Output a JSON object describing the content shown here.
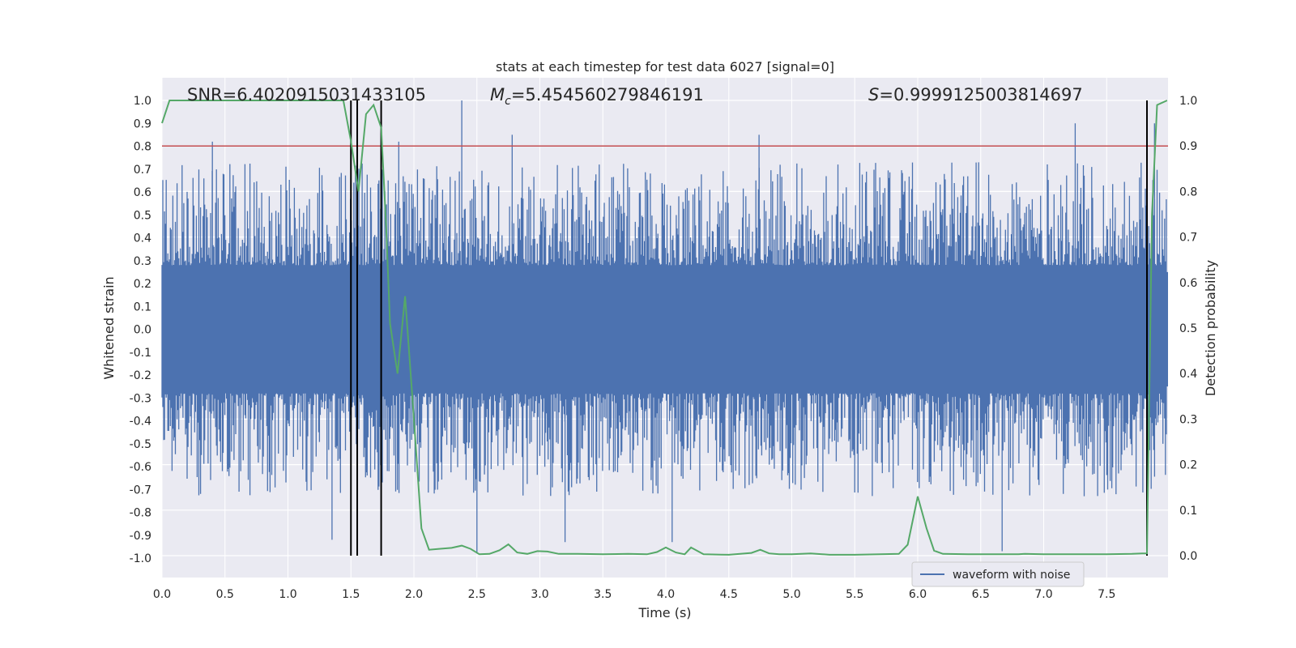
{
  "chart_data": {
    "type": "line",
    "title": "stats at each timestep for test data 6027 [signal=0]",
    "xlabel": "Time (s)",
    "ylabel": "Whitened strain",
    "y2label": "Detection probability",
    "xlim": [
      0.0,
      8.0
    ],
    "ylim": [
      -1.08,
      1.1
    ],
    "y2lim": [
      -0.05,
      1.0
    ],
    "xticks": [
      "0.0",
      "0.5",
      "1.0",
      "1.5",
      "2.0",
      "2.5",
      "3.0",
      "3.5",
      "4.0",
      "4.5",
      "5.0",
      "5.5",
      "6.0",
      "6.5",
      "7.0",
      "7.5"
    ],
    "yticks": [
      "1.0",
      "0.9",
      "0.8",
      "0.7",
      "0.6",
      "0.5",
      "0.4",
      "0.3",
      "0.2",
      "0.1",
      "0.0",
      "-0.1",
      "-0.2",
      "-0.3",
      "-0.4",
      "-0.5",
      "-0.6",
      "-0.7",
      "-0.8",
      "-0.9",
      "-1.0"
    ],
    "y2ticks": [
      "1.0",
      "0.9",
      "0.8",
      "0.7",
      "0.6",
      "0.5",
      "0.4",
      "0.3",
      "0.2",
      "0.1",
      "0.0"
    ],
    "grid": true,
    "legend": {
      "entries": [
        "waveform with noise"
      ],
      "placement": "lower-right"
    },
    "annotations": {
      "snr": "SNR=6.4020915031433105",
      "mc_symbol": "M",
      "mc_sub": "c",
      "mc_value": "=5.454560279846191",
      "s_symbol": "S",
      "s_value": "=0.9999125003814697"
    },
    "threshold": {
      "value": 0.9,
      "axis": "y2",
      "color": "#c44e52"
    },
    "vlines": [
      1.5,
      1.55,
      1.74,
      7.82
    ],
    "series": [
      {
        "name": "waveform with noise",
        "axis": "y",
        "color": "#4c72b0",
        "kind": "noise",
        "description_envelope_upper": [
          [
            0.0,
            0.6
          ],
          [
            1.0,
            0.6
          ],
          [
            2.0,
            0.6
          ],
          [
            3.0,
            0.6
          ],
          [
            4.0,
            0.6
          ],
          [
            5.0,
            0.6
          ],
          [
            6.0,
            0.6
          ],
          [
            7.0,
            0.6
          ],
          [
            8.0,
            0.6
          ]
        ],
        "spikes": [
          [
            0.4,
            0.82
          ],
          [
            1.88,
            0.82
          ],
          [
            2.38,
            1.0
          ],
          [
            2.78,
            0.85
          ],
          [
            4.74,
            0.85
          ],
          [
            7.25,
            0.9
          ],
          [
            7.88,
            0.9
          ],
          [
            2.5,
            -0.98
          ],
          [
            6.67,
            -0.97
          ],
          [
            4.05,
            -0.93
          ],
          [
            3.2,
            -0.93
          ],
          [
            1.35,
            -0.92
          ]
        ]
      },
      {
        "name": "",
        "axis": "y2",
        "color": "#55a868",
        "x": [
          0.0,
          0.06,
          0.13,
          0.3,
          0.6,
          0.9,
          1.2,
          1.4,
          1.44,
          1.5,
          1.56,
          1.62,
          1.68,
          1.74,
          1.78,
          1.81,
          1.87,
          1.93,
          1.99,
          2.06,
          2.12,
          2.2,
          2.3,
          2.38,
          2.45,
          2.52,
          2.6,
          2.68,
          2.75,
          2.82,
          2.9,
          2.98,
          3.06,
          3.15,
          3.3,
          3.5,
          3.7,
          3.85,
          3.93,
          4.0,
          4.08,
          4.15,
          4.2,
          4.3,
          4.5,
          4.68,
          4.75,
          4.82,
          4.9,
          5.0,
          5.15,
          5.3,
          5.5,
          5.7,
          5.85,
          5.92,
          6.0,
          6.07,
          6.13,
          6.2,
          6.4,
          6.6,
          6.8,
          6.85,
          7.0,
          7.3,
          7.5,
          7.7,
          7.78,
          7.82,
          7.86,
          7.9,
          7.98
        ],
        "y": [
          0.95,
          1.0,
          1.0,
          1.0,
          1.0,
          1.0,
          1.0,
          1.0,
          1.0,
          0.91,
          0.8,
          0.97,
          0.99,
          0.94,
          0.72,
          0.51,
          0.4,
          0.57,
          0.34,
          0.06,
          0.013,
          0.015,
          0.017,
          0.022,
          0.015,
          0.003,
          0.004,
          0.012,
          0.025,
          0.007,
          0.004,
          0.01,
          0.009,
          0.004,
          0.004,
          0.003,
          0.004,
          0.003,
          0.008,
          0.018,
          0.007,
          0.003,
          0.018,
          0.003,
          0.002,
          0.006,
          0.013,
          0.005,
          0.003,
          0.003,
          0.005,
          0.002,
          0.002,
          0.003,
          0.004,
          0.024,
          0.13,
          0.06,
          0.011,
          0.004,
          0.003,
          0.003,
          0.003,
          0.004,
          0.003,
          0.003,
          0.003,
          0.004,
          0.005,
          0.005,
          0.75,
          0.99,
          1.0
        ]
      }
    ]
  }
}
